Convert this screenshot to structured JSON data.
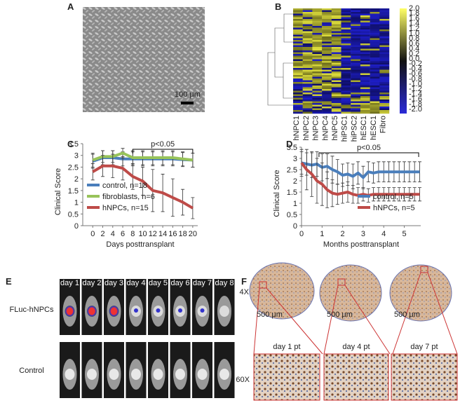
{
  "panels": [
    "A",
    "B",
    "C",
    "D",
    "E",
    "F"
  ],
  "panel_a": {
    "scale_bar": "100 μm"
  },
  "panel_b": {
    "samples": [
      "hNPC1",
      "hNPC2",
      "hNPC3",
      "hNPC4",
      "hNPC5",
      "hiPSC1",
      "hiPSC2",
      "hESC1",
      "hESC1",
      "Fibro"
    ],
    "colorbar_ticks": [
      "2.0",
      "1.8",
      "1.6",
      "1.4",
      "1.2",
      "1.0",
      "0.8",
      "0.6",
      "0.4",
      "0.2",
      "0.0",
      "-0.2",
      "-0.4",
      "-0.6",
      "-0.8",
      "-1.0",
      "-1.2",
      "-1.4",
      "-1.6",
      "-1.8",
      "-2.0"
    ]
  },
  "chart_data": [
    {
      "type": "line",
      "xlabel": "Days posttransplant",
      "ylabel": "Clinical Score",
      "x": [
        0,
        2,
        4,
        6,
        8,
        10,
        12,
        14,
        16,
        18,
        20
      ],
      "xlim": [
        -2,
        21
      ],
      "xticks": [
        0,
        2,
        4,
        6,
        8,
        10,
        12,
        14,
        16,
        18,
        20
      ],
      "ylim": [
        0,
        3.5
      ],
      "yticks": [
        0,
        0.5,
        1,
        1.5,
        2,
        2.5,
        3,
        3.5
      ],
      "legend": "lower left",
      "annotation": {
        "text": "p<0.05",
        "x_range": [
          8,
          20
        ]
      },
      "series": [
        {
          "name": "control, n=18",
          "color": "#4a7ebb",
          "values": [
            2.75,
            2.9,
            2.9,
            2.85,
            2.85,
            2.85,
            2.85,
            2.85,
            2.85,
            2.82,
            2.8
          ],
          "errors": [
            0.3,
            0.3,
            0.3,
            0.3,
            0.3,
            0.3,
            0.3,
            0.3,
            0.3,
            0.3,
            0.3
          ]
        },
        {
          "name": "fibroblasts, n=6",
          "color": "#98c35a",
          "values": [
            2.8,
            2.95,
            2.95,
            3.1,
            2.9,
            2.9,
            2.9,
            2.9,
            2.9,
            2.85,
            2.8
          ],
          "errors": [
            0.3,
            0.25,
            0.25,
            0.2,
            0.3,
            0.3,
            0.3,
            0.3,
            0.3,
            0.3,
            0.3
          ]
        },
        {
          "name": "hNPCs, n=15",
          "color": "#be4b48",
          "values": [
            2.3,
            2.55,
            2.55,
            2.45,
            2.1,
            1.9,
            1.5,
            1.4,
            1.2,
            1.0,
            0.75
          ],
          "errors": [
            0.35,
            0.45,
            0.5,
            0.5,
            0.55,
            0.6,
            0.9,
            0.8,
            0.8,
            0.55,
            0.45
          ]
        }
      ]
    },
    {
      "type": "line",
      "xlabel": "Months posttransplant",
      "ylabel": "Clinical Score",
      "x": [
        0,
        0.25,
        0.5,
        0.75,
        1,
        1.25,
        1.5,
        1.75,
        2,
        2.25,
        2.5,
        2.75,
        3,
        3.25,
        3.5,
        3.75,
        4,
        4.25,
        4.5,
        4.75,
        5,
        5.25,
        5.5,
        5.75
      ],
      "xlim": [
        0,
        5.8
      ],
      "xticks": [
        0,
        1,
        2,
        3,
        4,
        5
      ],
      "ylim": [
        0,
        3.5
      ],
      "yticks": [
        0,
        0.5,
        1,
        1.5,
        2,
        2.5,
        3,
        3.5
      ],
      "legend": "lower right",
      "annotation": {
        "text": "p<0.05",
        "x_range": [
          0.85,
          5.7
        ]
      },
      "series": [
        {
          "name": "control, n=5",
          "color": "#4a7ebb",
          "values": [
            2.8,
            2.75,
            2.7,
            2.75,
            2.6,
            2.65,
            2.5,
            2.4,
            2.25,
            2.3,
            2.2,
            2.35,
            2.15,
            2.4,
            2.35,
            2.4,
            2.4,
            2.4,
            2.4,
            2.4,
            2.4,
            2.4,
            2.4,
            2.4
          ],
          "errors": [
            0.5,
            0.5,
            0.55,
            0.55,
            0.6,
            0.55,
            0.6,
            0.55,
            0.5,
            0.5,
            0.55,
            0.5,
            0.5,
            0.45,
            0.45,
            0.45,
            0.45,
            0.45,
            0.45,
            0.45,
            0.45,
            0.45,
            0.45,
            0.45
          ]
        },
        {
          "name": "hNPCs, n=5",
          "color": "#be4b48",
          "values": [
            2.8,
            2.5,
            2.3,
            2.0,
            1.85,
            1.6,
            1.45,
            1.4,
            1.45,
            1.5,
            1.4,
            1.35,
            1.4,
            1.35,
            1.4,
            1.4,
            1.4,
            1.4,
            1.4,
            1.4,
            1.4,
            1.4,
            1.4,
            1.4
          ],
          "errors": [
            0.6,
            0.9,
            1.0,
            1.0,
            0.95,
            0.8,
            0.6,
            0.45,
            0.45,
            0.45,
            0.4,
            0.35,
            0.3,
            0.3,
            0.3,
            0.3,
            0.3,
            0.3,
            0.3,
            0.3,
            0.3,
            0.3,
            0.3,
            0.3
          ]
        }
      ]
    }
  ],
  "panel_e": {
    "days": [
      "day 1",
      "day 2",
      "day 3",
      "day 4",
      "day 5",
      "day 6",
      "day 7",
      "day 8"
    ],
    "row_labels": [
      "FLuc-hNPCs",
      "Control"
    ]
  },
  "panel_f": {
    "magnifications": [
      "4X",
      "60X"
    ],
    "timepoints": [
      "day 1 pt",
      "day 4 pt",
      "day 7 pt"
    ],
    "scale_bar": "500 μm"
  }
}
